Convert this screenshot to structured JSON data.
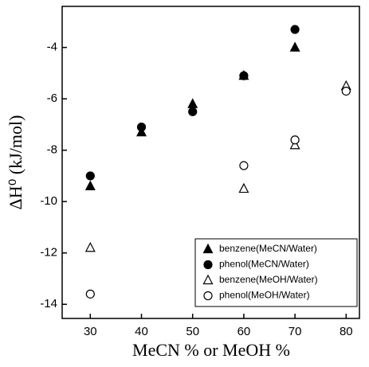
{
  "chart_data": {
    "type": "scatter",
    "x_label": "MeCN %  or  MeOH %",
    "y_label": "ΔH⁰ (kJ/mol)",
    "xlim": [
      24.5,
      82.6
    ],
    "ylim": [
      -14.55,
      -2.4
    ],
    "xticks": [
      30,
      40,
      50,
      60,
      70,
      80
    ],
    "yticks": [
      -14,
      -12,
      -10,
      -8,
      -6,
      -4
    ],
    "legend": "lower right",
    "series": [
      {
        "name": "benzene(MeCN/Water)",
        "color": "#000000",
        "marker": "triangle",
        "filled": true,
        "x": [
          30,
          40,
          50,
          60,
          70
        ],
        "values": [
          -9.4,
          -7.3,
          -6.2,
          -5.1,
          -4.0
        ]
      },
      {
        "name": "phenol(MeCN/Water)",
        "color": "#000000",
        "marker": "circle",
        "filled": true,
        "x": [
          30,
          40,
          50,
          60,
          70
        ],
        "values": [
          -9.0,
          -7.1,
          -6.5,
          -5.1,
          -3.3
        ]
      },
      {
        "name": "benzene(MeOH/Water)",
        "color": "#000000",
        "marker": "triangle",
        "filled": false,
        "x": [
          30,
          60,
          70,
          80
        ],
        "values": [
          -11.8,
          -9.5,
          -7.8,
          -5.5
        ]
      },
      {
        "name": "phenol(MeOH/Water)",
        "color": "#000000",
        "marker": "circle",
        "filled": false,
        "x": [
          30,
          60,
          70,
          80
        ],
        "values": [
          -13.6,
          -8.6,
          -7.6,
          -5.7
        ]
      }
    ]
  }
}
